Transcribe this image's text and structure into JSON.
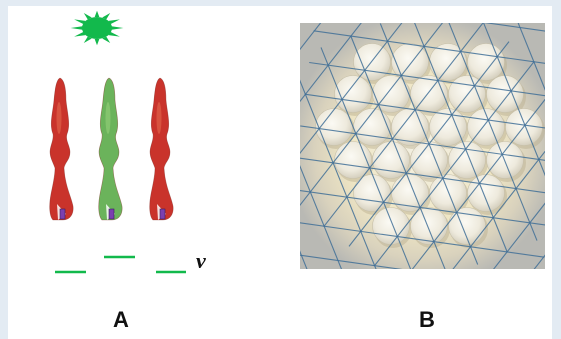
{
  "panels": {
    "a": {
      "label": "A",
      "symbol": "v",
      "light_color": "#12b94c",
      "cells": [
        {
          "color": "red",
          "fill": "#c9332b",
          "highlight": "#e3674d"
        },
        {
          "color": "green",
          "fill": "#6bb35b",
          "highlight": "#95cf7a"
        },
        {
          "color": "red",
          "fill": "#c9332b",
          "highlight": "#e3674d"
        }
      ],
      "level_lines": [
        {
          "level": "low"
        },
        {
          "level": "high"
        },
        {
          "level": "low"
        }
      ]
    },
    "b": {
      "label": "B",
      "grid_color": "#3f6f96"
    }
  }
}
